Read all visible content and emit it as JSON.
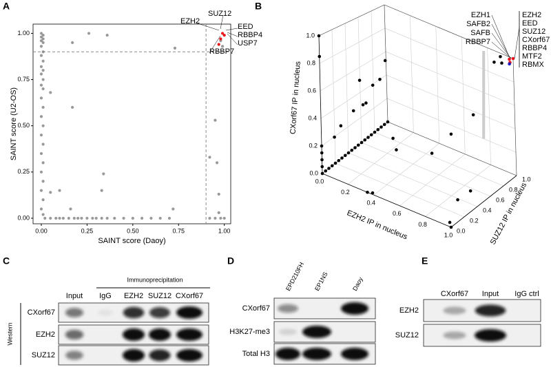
{
  "panel_labels": [
    "A",
    "B",
    "C",
    "D",
    "E"
  ],
  "chart_data": [
    {
      "type": "scatter",
      "xlabel": "SAINT score (Daoy)",
      "ylabel": "SAINT score (U2-OS)",
      "xlim": [
        -0.045,
        1.035
      ],
      "ylim": [
        -0.03,
        1.05
      ],
      "xticks": [
        {
          "value": 0,
          "label": "0.00"
        },
        {
          "value": 0.25,
          "label": "0.25"
        },
        {
          "value": 0.5,
          "label": "0.50"
        },
        {
          "value": 0.75,
          "label": "0.75"
        },
        {
          "value": 1,
          "label": "1.00"
        }
      ],
      "yticks": [
        {
          "value": 0,
          "label": "0.00"
        },
        {
          "value": 0.25,
          "label": "0.25"
        },
        {
          "value": 0.5,
          "label": "0.50"
        },
        {
          "value": 0.75,
          "label": "0.75"
        },
        {
          "value": 1,
          "label": "1.00"
        }
      ],
      "threshold_x": 0.9,
      "threshold_y": 0.9,
      "series": [
        {
          "color": "#7f7f7f",
          "x": [
            0,
            0.01,
            0,
            0.01,
            0,
            0.01,
            0,
            0.01,
            0,
            0.01,
            0,
            0.01,
            0,
            0.01,
            0,
            0.01,
            0,
            0.01,
            0,
            0.01,
            0,
            0.01,
            0,
            0.01,
            0,
            0.01,
            0,
            0.01,
            0,
            0.01,
            0.02,
            0.05,
            0.08,
            0.1,
            0.12,
            0.15,
            0.18,
            0.2,
            0.22,
            0.25,
            0.28,
            0.3,
            0.33,
            0.36,
            0.4,
            0.45,
            0.5,
            0.55,
            0.6,
            0.65,
            0.7,
            0.92,
            0.95,
            0.98,
            1.0,
            0.05,
            0.17,
            0.1,
            0.16,
            0.33,
            0.34,
            0.17,
            0.26,
            0.36,
            0.73,
            0.95,
            0.97,
            0.92,
            0.96,
            0.05,
            0.72,
            0.97,
            0.98,
            0.99
          ],
          "values": [
            1.0,
            0.99,
            0.98,
            0.97,
            0.96,
            0.95,
            0.93,
            0.9,
            0.88,
            0.85,
            0.82,
            0.8,
            0.78,
            0.75,
            0.72,
            0.7,
            0.65,
            0.6,
            0.55,
            0.5,
            0.45,
            0.4,
            0.35,
            0.3,
            0.25,
            0.2,
            0.15,
            0.1,
            0.05,
            0.02,
            0,
            0,
            0,
            0,
            0,
            0,
            0,
            0,
            0,
            0,
            0,
            0,
            0,
            0,
            0,
            0,
            0,
            0,
            0,
            0,
            0,
            0,
            0,
            0,
            0,
            0.68,
            0.6,
            0.15,
            0.05,
            0.15,
            0.24,
            0.95,
            1.0,
            0.99,
            0.92,
            0.53,
            0.13,
            0.33,
            0.3,
            0.14,
            0.05,
            0.03,
            0.96,
            0.93
          ]
        },
        {
          "color": "#e8141a",
          "x": [
            0.98,
            0.99,
            1.0,
            0.97
          ],
          "values": [
            0.97,
            1.0,
            0.99,
            0.94
          ]
        }
      ],
      "annotations": [
        {
          "text": "EZH2",
          "color": "#e8141a"
        },
        {
          "text": "SUZ12",
          "color": "#e8141a"
        },
        {
          "text": "EED",
          "color": "#e8141a"
        },
        {
          "text": "RBBP4",
          "color": "#000000"
        },
        {
          "text": "USP7",
          "color": "#000000"
        },
        {
          "text": "RBBP7",
          "color": "#000000"
        }
      ]
    },
    {
      "type": "scatter3d",
      "xlabel": "EZH2 IP in nucleus",
      "ylabel": "SUZ12 IP in nucleus",
      "zlabel": "CXorf67 IP in nucleus",
      "xlim": [
        0,
        1
      ],
      "ylim": [
        0,
        1
      ],
      "zlim": [
        0,
        1
      ],
      "xticks": [
        {
          "value": 0,
          "label": "0.0"
        },
        0.2,
        0.4,
        0.6,
        0.8,
        {
          "value": 1,
          "label": "1.0"
        }
      ],
      "yticks": [
        {
          "value": 0,
          "label": "0.0"
        },
        0.2,
        0.4,
        0.6,
        0.8,
        {
          "value": 1,
          "label": "1.0"
        }
      ],
      "zticks": [
        {
          "value": 0,
          "label": "0.0"
        },
        0.2,
        0.4,
        0.6,
        0.8,
        {
          "value": 1,
          "label": "1.0"
        }
      ],
      "series": [
        {
          "color": "#000000",
          "x": [
            0,
            0,
            0,
            0,
            0,
            0,
            0,
            0,
            0,
            0,
            0,
            0,
            0,
            0,
            0,
            0,
            0,
            0,
            0,
            0,
            0,
            0,
            0,
            0,
            0,
            0.1,
            0.15,
            0.2,
            0.05,
            0.1,
            0.05,
            0.3,
            0.35,
            0.55,
            0.6,
            0,
            0.02,
            0,
            0,
            0.05,
            0.35,
            0.38,
            1,
            0.98,
            0.9,
            0.95,
            0.7,
            0.9,
            0.92,
            0.85
          ],
          "y": [
            0,
            0.05,
            0.1,
            0.15,
            0.2,
            0.25,
            0.3,
            0.35,
            0.4,
            0.45,
            0.5,
            0.55,
            0.6,
            0.65,
            0.7,
            0.75,
            0.8,
            0.85,
            0.9,
            0.95,
            1,
            0,
            0,
            0,
            0,
            0.3,
            0.35,
            0.3,
            0.5,
            0.6,
            0.2,
            0.5,
            0.45,
            0.6,
            0.8,
            0.9,
            0.95,
            0,
            0,
            0.1,
            0,
            0.02,
            0,
            0.02,
            0.3,
            0.4,
            0.95,
            1,
            0.98,
            1
          ],
          "z": [
            0,
            0,
            0,
            0,
            0,
            0,
            0,
            0,
            0,
            0,
            0,
            0,
            0,
            0,
            0,
            0,
            0,
            0,
            0,
            0,
            0,
            0.05,
            0.1,
            0.15,
            0.2,
            0.4,
            0.45,
            0.5,
            0.55,
            0.5,
            0.3,
            0.2,
            0.15,
            0.15,
            0.25,
            0.4,
            0.55,
            1.0,
            0.85,
            0.25,
            0,
            0,
            0,
            0.02,
            0.05,
            0.1,
            0.4,
            0.97,
            0.93,
            0.9
          ]
        },
        {
          "color": "#e8141a",
          "x": [
            1,
            0.97,
            0.99
          ],
          "y": [
            1,
            1,
            0.97
          ],
          "z": [
            1,
            0.98,
            0.97
          ]
        },
        {
          "color": "#1f1fbf",
          "x": [
            0.98
          ],
          "y": [
            0.98
          ],
          "z": [
            0.95
          ]
        }
      ],
      "annotations": [
        {
          "text": "EZH1",
          "color": "#000000"
        },
        {
          "text": "SAFB2",
          "color": "#000000"
        },
        {
          "text": "SAFB",
          "color": "#000000"
        },
        {
          "text": "RBBP7",
          "color": "#000000"
        },
        {
          "text": "EZH2",
          "color": "#e8141a"
        },
        {
          "text": "EED",
          "color": "#e8141a"
        },
        {
          "text": "SUZ12",
          "color": "#e8141a"
        },
        {
          "text": "CXorf67",
          "color": "#1f1fbf"
        },
        {
          "text": "RBBP4",
          "color": "#000000"
        },
        {
          "text": "MTF2",
          "color": "#000000"
        },
        {
          "text": "RBMX",
          "color": "#000000"
        }
      ]
    }
  ],
  "blots": [
    {
      "title": "Immunoprecipitation",
      "side_label": "Western",
      "columns": [
        "Input",
        "IgG",
        "EZH2",
        "SUZ12",
        "CXorf67"
      ],
      "rows": [
        "CXorf67",
        "EZH2",
        "SUZ12"
      ]
    },
    {
      "columns": [
        "EPD210FH",
        "EP1NS",
        "Daoy"
      ],
      "rows": [
        "CXorf67",
        "H3K27-me3",
        "Total H3"
      ]
    },
    {
      "columns": [
        "CXorf67",
        "Input",
        "IgG ctrl"
      ],
      "rows": [
        "EZH2",
        "SUZ12"
      ]
    }
  ]
}
